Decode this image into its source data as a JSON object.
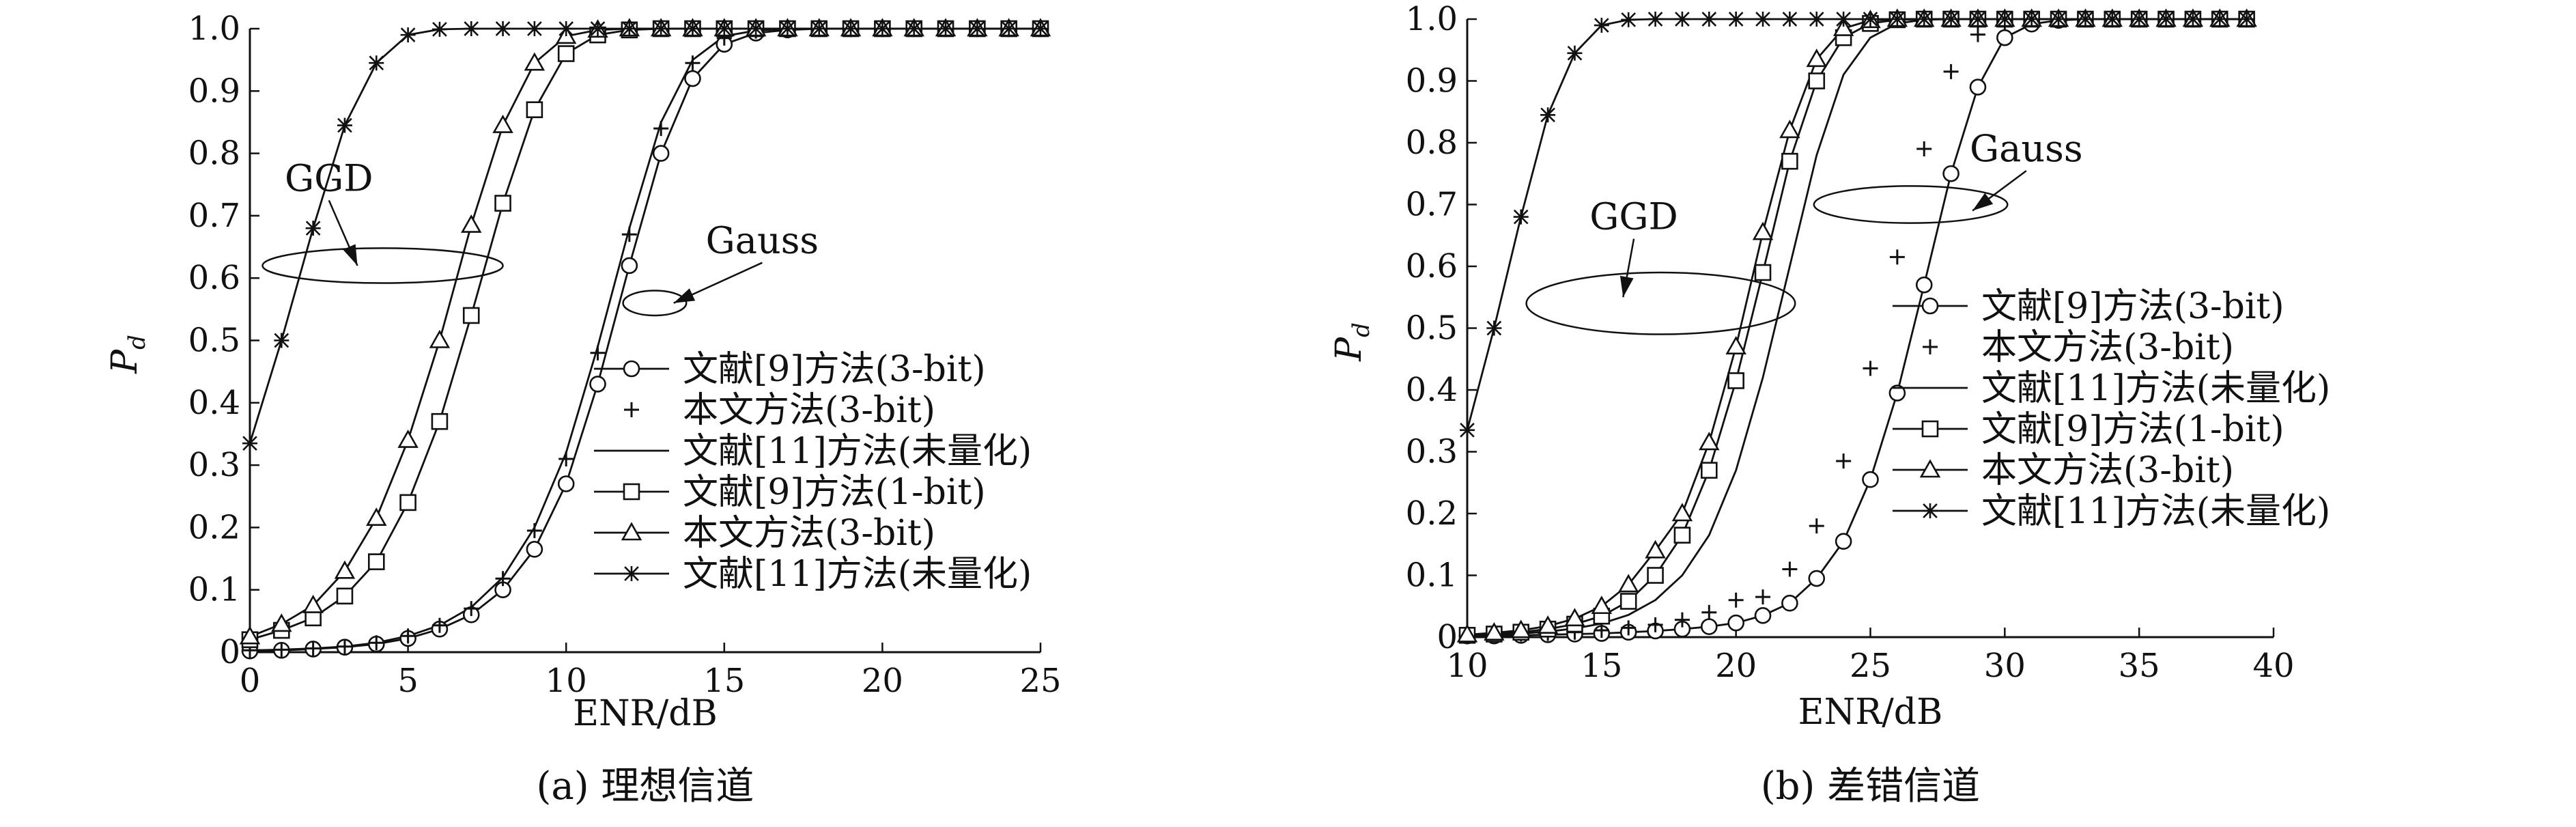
{
  "chart_data": [
    {
      "type": "line",
      "caption": "(a) 理想信道",
      "xlabel": "ENR/dB",
      "ylabel": "P",
      "ylabel_sub": "d",
      "xlim": [
        0,
        25
      ],
      "ylim": [
        0,
        1.0
      ],
      "x_ticks": [
        0,
        5,
        10,
        15,
        20,
        25
      ],
      "y_ticks": [
        0,
        0.1,
        0.2,
        0.3,
        0.4,
        0.5,
        0.6,
        0.7,
        0.8,
        0.9,
        1.0
      ],
      "y_tick_labels": [
        "0",
        "0.1",
        "0.2",
        "0.3",
        "0.4",
        "0.5",
        "0.6",
        "0.7",
        "0.8",
        "0.9",
        "1.0"
      ],
      "legend_position": "lower-right",
      "annotations": [
        {
          "text": "GGD",
          "ellipse": {
            "cx": 4.2,
            "cy": 0.62,
            "rx": 3.8,
            "ry": 0.028
          },
          "text_at": [
            2.5,
            0.74
          ],
          "arrow_to": [
            3.4,
            0.62
          ]
        },
        {
          "text": "Gauss",
          "ellipse": {
            "cx": 12.8,
            "cy": 0.56,
            "rx": 1.0,
            "ry": 0.02
          },
          "text_at": [
            16.2,
            0.64
          ],
          "arrow_to": [
            13.4,
            0.56
          ]
        }
      ],
      "series": [
        {
          "name": "文献[9]方法(3-bit)",
          "marker": "circle",
          "line": true,
          "x": [
            0,
            1,
            2,
            3,
            4,
            5,
            6,
            7,
            8,
            9,
            10,
            11,
            12,
            13,
            14,
            15,
            16,
            17,
            18,
            19,
            20,
            21,
            22,
            23,
            24,
            25
          ],
          "y": [
            0.002,
            0.003,
            0.005,
            0.008,
            0.013,
            0.022,
            0.037,
            0.06,
            0.1,
            0.165,
            0.27,
            0.43,
            0.62,
            0.8,
            0.92,
            0.975,
            0.993,
            0.998,
            1,
            1,
            1,
            1,
            1,
            1,
            1,
            1
          ]
        },
        {
          "name": "本文方法(3-bit)",
          "marker": "plus",
          "line": false,
          "x": [
            0,
            1,
            2,
            3,
            4,
            5,
            6,
            7,
            8,
            9,
            10,
            11,
            12,
            13,
            14,
            15,
            16,
            17,
            18,
            19,
            20,
            21,
            22,
            23,
            24,
            25
          ],
          "y": [
            0.003,
            0.004,
            0.006,
            0.009,
            0.015,
            0.026,
            0.043,
            0.07,
            0.118,
            0.195,
            0.31,
            0.48,
            0.67,
            0.84,
            0.945,
            0.985,
            0.996,
            0.999,
            1,
            1,
            1,
            1,
            1,
            1,
            1,
            1
          ]
        },
        {
          "name": "文献[11]方法(未量化)",
          "marker": "none",
          "line": true,
          "x": [
            0,
            1,
            2,
            3,
            4,
            5,
            6,
            7,
            8,
            9,
            10,
            11,
            12,
            13,
            14,
            15,
            16,
            17,
            18,
            19,
            20,
            21,
            22,
            23,
            24,
            25
          ],
          "y": [
            0.003,
            0.004,
            0.006,
            0.009,
            0.015,
            0.026,
            0.043,
            0.072,
            0.12,
            0.2,
            0.32,
            0.49,
            0.68,
            0.85,
            0.95,
            0.988,
            0.997,
            1,
            1,
            1,
            1,
            1,
            1,
            1,
            1,
            1
          ]
        },
        {
          "name": "文献[9]方法(1-bit)",
          "marker": "square",
          "line": true,
          "x": [
            0,
            1,
            2,
            3,
            4,
            5,
            6,
            7,
            8,
            9,
            10,
            11,
            12,
            13,
            14,
            15,
            16,
            17,
            18,
            19,
            20,
            21,
            22,
            23,
            24,
            25
          ],
          "y": [
            0.02,
            0.035,
            0.055,
            0.09,
            0.145,
            0.24,
            0.37,
            0.54,
            0.72,
            0.87,
            0.96,
            0.99,
            0.998,
            1,
            1,
            1,
            1,
            1,
            1,
            1,
            1,
            1,
            1,
            1,
            1,
            1
          ]
        },
        {
          "name": "本文方法(3-bit)",
          "marker": "triangle",
          "line": true,
          "x": [
            0,
            1,
            2,
            3,
            4,
            5,
            6,
            7,
            8,
            9,
            10,
            11,
            12,
            13,
            14,
            15,
            16,
            17,
            18,
            19,
            20,
            21,
            22,
            23,
            24,
            25
          ],
          "y": [
            0.025,
            0.045,
            0.075,
            0.13,
            0.215,
            0.34,
            0.5,
            0.685,
            0.845,
            0.945,
            0.988,
            0.998,
            1,
            1,
            1,
            1,
            1,
            1,
            1,
            1,
            1,
            1,
            1,
            1,
            1,
            1
          ]
        },
        {
          "name": "文献[11]方法(未量化)",
          "marker": "star",
          "line": true,
          "x": [
            0,
            1,
            2,
            3,
            4,
            5,
            6,
            7,
            8,
            9,
            10,
            11,
            12,
            13,
            14,
            15,
            16,
            17,
            18,
            19,
            20,
            21,
            22,
            23,
            24,
            25
          ],
          "y": [
            0.335,
            0.5,
            0.68,
            0.845,
            0.945,
            0.99,
            0.999,
            1,
            1,
            1,
            1,
            1,
            1,
            1,
            1,
            1,
            1,
            1,
            1,
            1,
            1,
            1,
            1,
            1,
            1,
            1
          ]
        }
      ]
    },
    {
      "type": "line",
      "caption": "(b) 差错信道",
      "xlabel": "ENR/dB",
      "ylabel": "P",
      "ylabel_sub": "d",
      "xlim": [
        10,
        40
      ],
      "ylim": [
        0,
        1.0
      ],
      "x_ticks": [
        10,
        15,
        20,
        25,
        30,
        35,
        40
      ],
      "y_ticks": [
        0,
        0.1,
        0.2,
        0.3,
        0.4,
        0.5,
        0.6,
        0.7,
        0.8,
        0.9,
        1.0
      ],
      "y_tick_labels": [
        "0",
        "0.1",
        "0.2",
        "0.3",
        "0.4",
        "0.5",
        "0.6",
        "0.7",
        "0.8",
        "0.9",
        "1.0"
      ],
      "legend_position": "right",
      "annotations": [
        {
          "text": "GGD",
          "ellipse": {
            "cx": 17.2,
            "cy": 0.54,
            "rx": 5.0,
            "ry": 0.05
          },
          "text_at": [
            16.2,
            0.66
          ],
          "arrow_to": [
            15.8,
            0.55
          ]
        },
        {
          "text": "Gauss",
          "ellipse": {
            "cx": 26.5,
            "cy": 0.7,
            "rx": 3.6,
            "ry": 0.03
          },
          "text_at": [
            30.8,
            0.77
          ],
          "arrow_to": [
            28.8,
            0.69
          ]
        }
      ],
      "series": [
        {
          "name": "文献[9]方法(3-bit)",
          "marker": "circle",
          "line": true,
          "x": [
            10,
            11,
            12,
            13,
            14,
            15,
            16,
            17,
            18,
            19,
            20,
            21,
            22,
            23,
            24,
            25,
            26,
            27,
            28,
            29,
            30,
            31,
            32,
            33,
            34,
            35,
            36,
            37,
            38,
            39
          ],
          "y": [
            0.002,
            0.002,
            0.003,
            0.004,
            0.005,
            0.006,
            0.008,
            0.01,
            0.013,
            0.017,
            0.023,
            0.035,
            0.055,
            0.095,
            0.155,
            0.255,
            0.395,
            0.57,
            0.75,
            0.89,
            0.97,
            0.992,
            0.998,
            1,
            1,
            1,
            1,
            1,
            1,
            1
          ]
        },
        {
          "name": "本文方法(3-bit)",
          "marker": "plus",
          "line": false,
          "x": [
            10,
            11,
            12,
            13,
            14,
            15,
            16,
            17,
            18,
            19,
            20,
            21,
            22,
            23,
            24,
            25,
            26,
            27,
            28,
            29,
            30,
            31,
            32,
            33,
            34,
            35,
            36,
            37,
            38,
            39
          ],
          "y": [
            0.003,
            0.004,
            0.005,
            0.006,
            0.008,
            0.011,
            0.015,
            0.02,
            0.028,
            0.04,
            0.06,
            0.065,
            0.11,
            0.18,
            0.285,
            0.435,
            0.615,
            0.79,
            0.915,
            0.975,
            0.995,
            0.999,
            1,
            1,
            1,
            1,
            1,
            1,
            1,
            1
          ]
        },
        {
          "name": "文献[11]方法(未量化)",
          "marker": "none",
          "line": true,
          "x": [
            10,
            11,
            12,
            13,
            14,
            15,
            16,
            17,
            18,
            19,
            20,
            21,
            22,
            23,
            24,
            25,
            26,
            27,
            28,
            29,
            30,
            31,
            32,
            33,
            34,
            35,
            36,
            37,
            38,
            39
          ],
          "y": [
            0.003,
            0.004,
            0.006,
            0.009,
            0.014,
            0.022,
            0.036,
            0.06,
            0.1,
            0.165,
            0.27,
            0.42,
            0.6,
            0.78,
            0.91,
            0.97,
            0.993,
            0.999,
            1,
            1,
            1,
            1,
            1,
            1,
            1,
            1,
            1,
            1,
            1,
            1
          ]
        },
        {
          "name": "文献[9]方法(1-bit)",
          "marker": "square",
          "line": true,
          "x": [
            10,
            11,
            12,
            13,
            14,
            15,
            16,
            17,
            18,
            19,
            20,
            21,
            22,
            23,
            24,
            25,
            26,
            27,
            28,
            29,
            30,
            31,
            32,
            33,
            34,
            35,
            36,
            37,
            38,
            39
          ],
          "y": [
            0.003,
            0.005,
            0.008,
            0.013,
            0.021,
            0.034,
            0.058,
            0.1,
            0.165,
            0.27,
            0.415,
            0.59,
            0.77,
            0.9,
            0.97,
            0.993,
            0.999,
            1,
            1,
            1,
            1,
            1,
            1,
            1,
            1,
            1,
            1,
            1,
            1,
            1
          ]
        },
        {
          "name": "本文方法(3-bit)",
          "marker": "triangle",
          "line": true,
          "x": [
            10,
            11,
            12,
            13,
            14,
            15,
            16,
            17,
            18,
            19,
            20,
            21,
            22,
            23,
            24,
            25,
            26,
            27,
            28,
            29,
            30,
            31,
            32,
            33,
            34,
            35,
            36,
            37,
            38,
            39
          ],
          "y": [
            0.004,
            0.007,
            0.011,
            0.018,
            0.03,
            0.05,
            0.085,
            0.14,
            0.2,
            0.315,
            0.47,
            0.655,
            0.82,
            0.935,
            0.985,
            0.998,
            1,
            1,
            1,
            1,
            1,
            1,
            1,
            1,
            1,
            1,
            1,
            1,
            1,
            1
          ]
        },
        {
          "name": "文献[11]方法(未量化)",
          "marker": "star",
          "line": true,
          "x": [
            10,
            11,
            12,
            13,
            14,
            15,
            16,
            17,
            18,
            19,
            20,
            21,
            22,
            23,
            24,
            25,
            26,
            27,
            28,
            29,
            30,
            31,
            32,
            33,
            34,
            35,
            36,
            37,
            38,
            39
          ],
          "y": [
            0.335,
            0.5,
            0.68,
            0.845,
            0.945,
            0.99,
            0.999,
            1,
            1,
            1,
            1,
            1,
            1,
            1,
            1,
            1,
            1,
            1,
            1,
            1,
            1,
            1,
            1,
            1,
            1,
            1,
            1,
            1,
            1,
            1
          ]
        }
      ]
    }
  ]
}
